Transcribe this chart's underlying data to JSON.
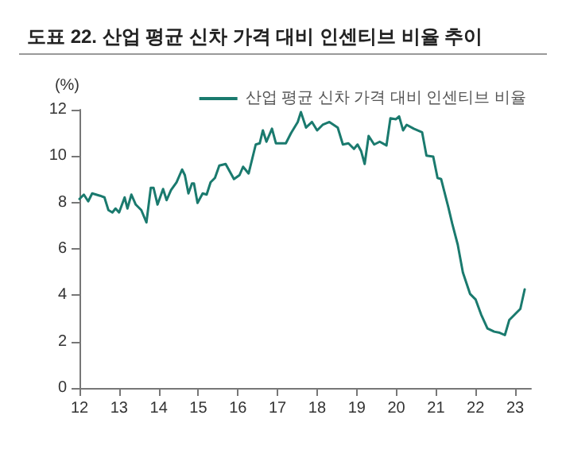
{
  "chart_data": {
    "type": "line",
    "title": "도표 22. 산업 평균 신차 가격 대비 인센티브 비율 추이",
    "ylabel": "(%)",
    "xlim": [
      12,
      23.4
    ],
    "xticks": [
      12,
      13,
      14,
      15,
      16,
      17,
      18,
      19,
      20,
      21,
      22,
      23
    ],
    "ylim": [
      0,
      12
    ],
    "yticks": [
      0,
      2,
      4,
      6,
      8,
      10,
      12
    ],
    "grid": false,
    "legend": "top right",
    "marker": "none",
    "line_style": "solid",
    "series": [
      {
        "name": "산업 평균 신차 가격 대비 인센티브 비율",
        "color": "#1a7a6e",
        "x": [
          12.0,
          12.11,
          12.22,
          12.32,
          12.52,
          12.63,
          12.73,
          12.83,
          12.91,
          13.0,
          13.14,
          13.21,
          13.31,
          13.42,
          13.56,
          13.69,
          13.8,
          13.87,
          13.97,
          14.11,
          14.2,
          14.31,
          14.45,
          14.59,
          14.66,
          14.75,
          14.84,
          14.89,
          14.98,
          15.11,
          15.21,
          15.31,
          15.42,
          15.53,
          15.69,
          15.9,
          16.04,
          16.13,
          16.27,
          16.45,
          16.55,
          16.63,
          16.72,
          16.86,
          16.96,
          17.21,
          17.34,
          17.51,
          17.59,
          17.72,
          17.87,
          18.0,
          18.14,
          18.31,
          18.52,
          18.65,
          18.79,
          18.93,
          19.02,
          19.11,
          19.2,
          19.3,
          19.44,
          19.58,
          19.75,
          19.85,
          19.99,
          20.07,
          20.17,
          20.26,
          20.44,
          20.65,
          20.76,
          20.93,
          21.04,
          21.13,
          21.31,
          21.41,
          21.55,
          21.68,
          21.86,
          22.0,
          22.14,
          22.3,
          22.47,
          22.61,
          22.74,
          22.85,
          22.99,
          23.13,
          23.24
        ],
        "values": [
          8.15,
          8.34,
          8.05,
          8.39,
          8.29,
          8.22,
          7.67,
          7.57,
          7.74,
          7.57,
          8.22,
          7.74,
          8.34,
          7.91,
          7.67,
          7.14,
          8.63,
          8.63,
          7.91,
          8.58,
          8.1,
          8.53,
          8.87,
          9.42,
          9.18,
          8.39,
          8.82,
          8.82,
          7.98,
          8.39,
          8.34,
          8.87,
          9.06,
          9.59,
          9.66,
          9.01,
          9.18,
          9.54,
          9.25,
          10.5,
          10.55,
          11.11,
          10.62,
          11.18,
          10.55,
          10.55,
          10.99,
          11.47,
          11.9,
          11.23,
          11.47,
          11.11,
          11.35,
          11.47,
          11.23,
          10.5,
          10.55,
          10.31,
          10.5,
          10.22,
          9.66,
          10.87,
          10.5,
          10.62,
          10.46,
          11.63,
          11.59,
          11.71,
          11.11,
          11.35,
          11.18,
          11.03,
          10.02,
          9.98,
          9.06,
          9.01,
          7.81,
          7.09,
          6.18,
          4.98,
          4.06,
          3.82,
          3.17,
          2.57,
          2.43,
          2.38,
          2.28,
          2.93,
          3.17,
          3.41,
          4.25
        ]
      }
    ]
  }
}
